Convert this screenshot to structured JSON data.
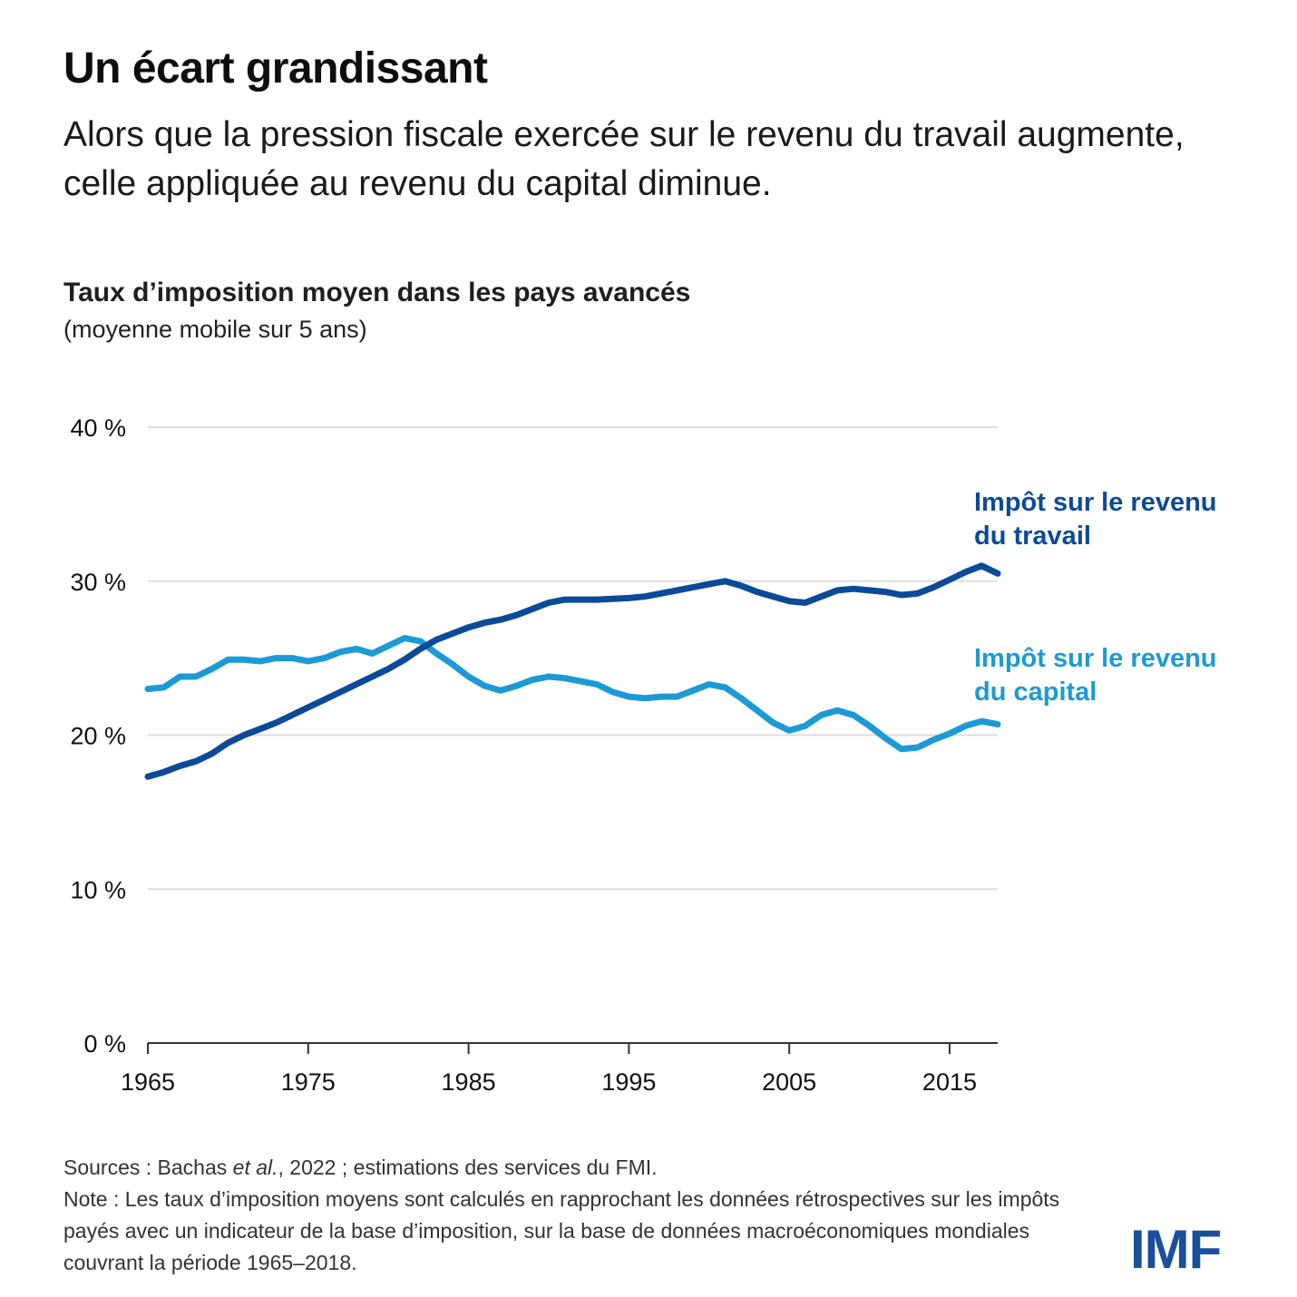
{
  "header": {
    "title": "Un écart grandissant",
    "subtitle": "Alors que la pression fiscale exercée sur le revenu du travail augmente, celle appliquée au revenu du capital diminue."
  },
  "chart_data": {
    "type": "line",
    "title": "Taux d’imposition moyen dans les pays avancés",
    "subtitle": "(moyenne mobile sur 5 ans)",
    "xlabel": "",
    "ylabel": "",
    "xlim": [
      1965,
      2018
    ],
    "ylim": [
      0,
      40
    ],
    "grid": true,
    "y_ticks": [
      0,
      10,
      20,
      30,
      40
    ],
    "y_tick_labels": [
      "0 %",
      "10 %",
      "20 %",
      "30 %",
      "40 %"
    ],
    "x_ticks": [
      1965,
      1975,
      1985,
      1995,
      2005,
      2015
    ],
    "x_tick_labels": [
      "1965",
      "1975",
      "1985",
      "1995",
      "2005",
      "2015"
    ],
    "x": [
      1965,
      1966,
      1967,
      1968,
      1969,
      1970,
      1971,
      1972,
      1973,
      1974,
      1975,
      1976,
      1977,
      1978,
      1979,
      1980,
      1981,
      1982,
      1983,
      1984,
      1985,
      1986,
      1987,
      1988,
      1989,
      1990,
      1991,
      1992,
      1993,
      1994,
      1995,
      1996,
      1997,
      1998,
      1999,
      2000,
      2001,
      2002,
      2003,
      2004,
      2005,
      2006,
      2007,
      2008,
      2009,
      2010,
      2011,
      2012,
      2013,
      2014,
      2015,
      2016,
      2017,
      2018
    ],
    "series": [
      {
        "name": "Impôt sur le revenu du travail",
        "label_lines": [
          "Impôt sur le revenu",
          "du travail"
        ],
        "color": "#0b4a98",
        "values": [
          17.3,
          17.6,
          18.0,
          18.3,
          18.8,
          19.5,
          20.0,
          20.4,
          20.8,
          21.3,
          21.8,
          22.3,
          22.8,
          23.3,
          23.8,
          24.3,
          24.9,
          25.6,
          26.2,
          26.6,
          27.0,
          27.3,
          27.5,
          27.8,
          28.2,
          28.6,
          28.8,
          28.8,
          28.8,
          28.85,
          28.9,
          29.0,
          29.2,
          29.4,
          29.6,
          29.8,
          30.0,
          29.7,
          29.3,
          29.0,
          28.7,
          28.6,
          29.0,
          29.4,
          29.5,
          29.4,
          29.3,
          29.1,
          29.2,
          29.6,
          30.1,
          30.6,
          31.0,
          30.5
        ]
      },
      {
        "name": "Impôt sur le revenu du capital",
        "label_lines": [
          "Impôt sur le revenu",
          "du capital"
        ],
        "color": "#1c9ad6",
        "values": [
          23.0,
          23.1,
          23.8,
          23.8,
          24.3,
          24.9,
          24.9,
          24.8,
          25.0,
          25.0,
          24.8,
          25.0,
          25.4,
          25.6,
          25.3,
          25.8,
          26.3,
          26.1,
          25.3,
          24.6,
          23.8,
          23.2,
          22.9,
          23.2,
          23.6,
          23.8,
          23.7,
          23.5,
          23.3,
          22.8,
          22.5,
          22.4,
          22.5,
          22.5,
          22.9,
          23.3,
          23.1,
          22.4,
          21.6,
          20.8,
          20.3,
          20.6,
          21.3,
          21.6,
          21.3,
          20.6,
          19.8,
          19.1,
          19.2,
          19.7,
          20.1,
          20.6,
          20.9,
          20.7
        ]
      }
    ],
    "legend": "inline-right"
  },
  "footer": {
    "sources_prefix": "Sources : Bachas ",
    "sources_italic": "et al.",
    "sources_suffix": ", 2022 ; estimations des services du FMI.",
    "note": "Note : Les taux d’imposition moyens sont calculés en rapprochant les données rétrospectives sur les impôts payés avec un indicateur de la base d’imposition, sur la base de données macroéconomiques mondiales couvrant la période 1965–2018."
  },
  "logo": {
    "text": "IMF",
    "color": "#1a4f9c"
  },
  "colors": {
    "gridline": "#dddddd",
    "axis": "#333333"
  }
}
